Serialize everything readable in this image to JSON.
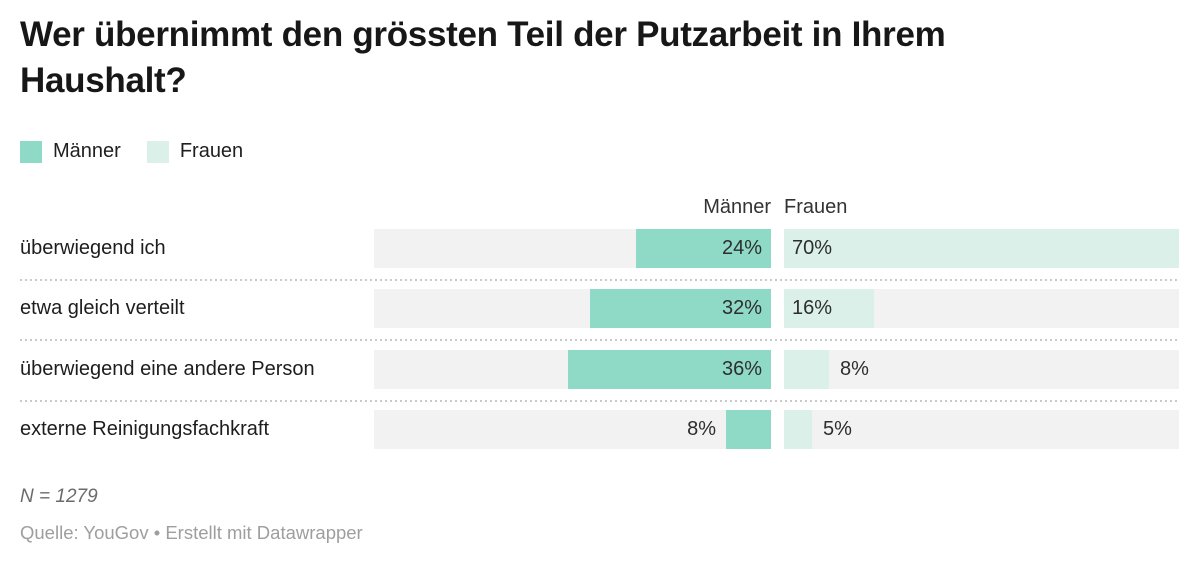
{
  "title": "Wer übernimmt den grössten Teil der Putzarbeit in Ihrem Haushalt?",
  "legend": {
    "items": [
      {
        "label": "Männer",
        "color": "#8edac6"
      },
      {
        "label": "Frauen",
        "color": "#daf0e9"
      }
    ]
  },
  "column_headers": [
    "Männer",
    "Frauen"
  ],
  "notes": "N = 1279",
  "source": "Quelle: YouGov • Erstellt mit Datawrapper",
  "colors": {
    "maenner_bar": "#8edac6",
    "frauen_bar": "#daf0e9",
    "track": "#f2f2f2",
    "separator": "#c9c9c9"
  },
  "chart_data": {
    "type": "bar",
    "orientation": "horizontal-split-columns",
    "categories": [
      "überwiegend ich",
      "etwa gleich verteilt",
      "überwiegend eine andere Person",
      "externe Reinigungsfachkraft"
    ],
    "series": [
      {
        "name": "Männer",
        "color": "#8edac6",
        "values": [
          24,
          32,
          36,
          8
        ]
      },
      {
        "name": "Frauen",
        "color": "#daf0e9",
        "values": [
          70,
          16,
          8,
          5
        ]
      }
    ],
    "value_suffix": "%",
    "xlim": [
      0,
      70
    ],
    "grid": false,
    "legend_position": "top-left",
    "value_labels_shown": true
  }
}
